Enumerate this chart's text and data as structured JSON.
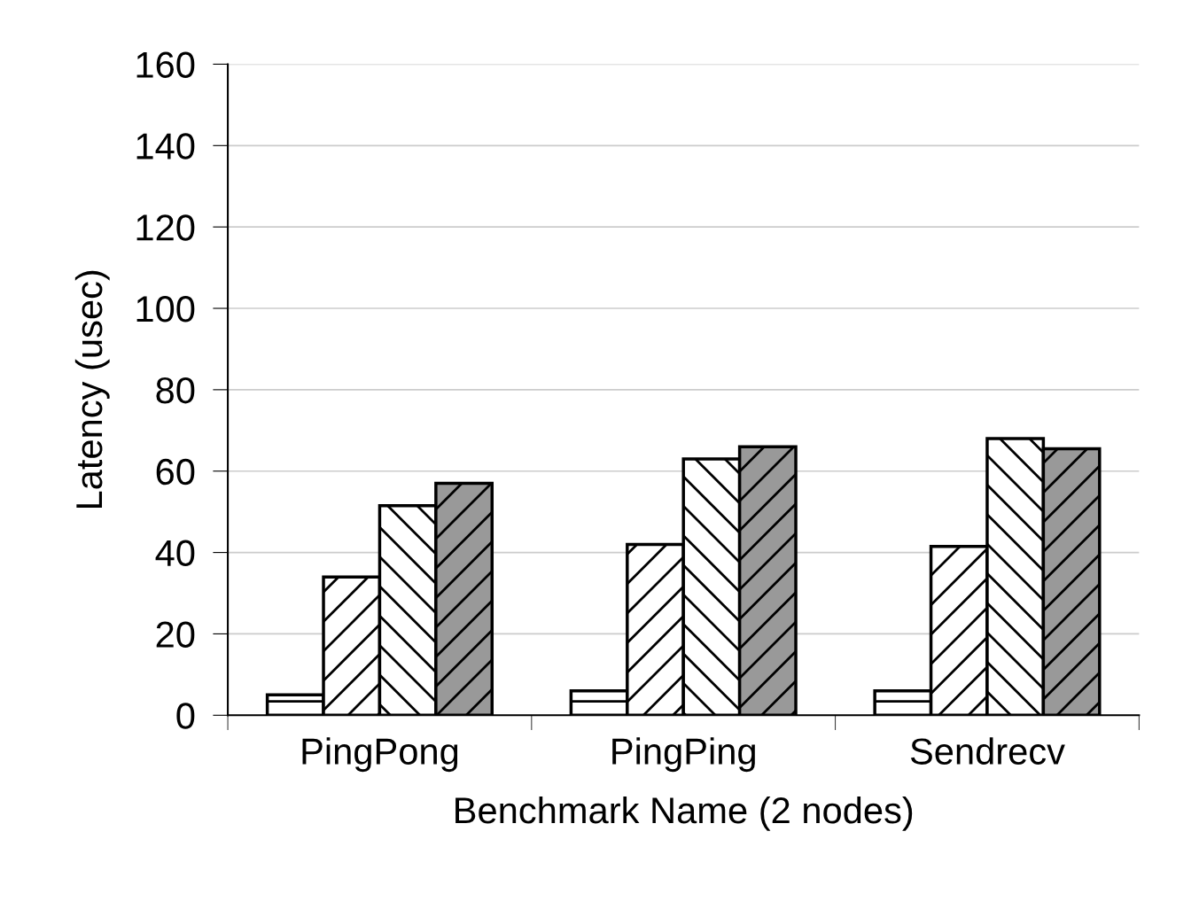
{
  "chart_data": {
    "type": "bar",
    "xlabel": "Benchmark Name (2 nodes)",
    "ylabel": "Latency (usec)",
    "categories": [
      "PingPong",
      "PingPing",
      "Sendrecv"
    ],
    "series": [
      {
        "color": "#ffffff",
        "values": [
          5,
          6,
          6
        ]
      },
      {
        "color": "#ffffff",
        "values": [
          34,
          42,
          41.5
        ]
      },
      {
        "color": "#ffffff",
        "values": [
          51.5,
          63,
          68
        ]
      },
      {
        "color": "#999999",
        "values": [
          57,
          66,
          65.5
        ]
      }
    ],
    "ylim": [
      0,
      160
    ],
    "yticks": [
      0,
      20,
      40,
      60,
      80,
      100,
      120,
      140,
      160
    ],
    "grid": "y",
    "legend": false
  }
}
